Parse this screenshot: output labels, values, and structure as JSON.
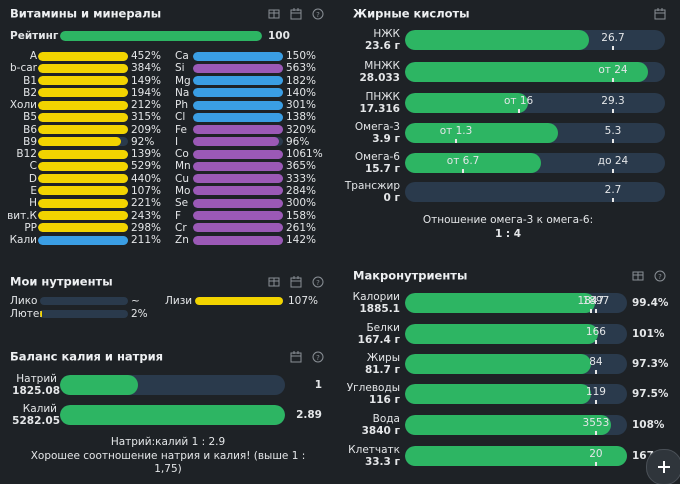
{
  "vitamins": {
    "title": "Витамины и минералы",
    "rating": {
      "label": "Рейтинг",
      "value": 100
    },
    "left": [
      {
        "name": "A",
        "value": 452,
        "value_label": "452%",
        "color": "#f2d400"
      },
      {
        "name": "b-car",
        "value": 384,
        "value_label": "384%",
        "color": "#f2d400"
      },
      {
        "name": "B1",
        "value": 149,
        "value_label": "149%",
        "color": "#f2d400"
      },
      {
        "name": "B2",
        "value": 194,
        "value_label": "194%",
        "color": "#f2d400"
      },
      {
        "name": "Холи",
        "value": 212,
        "value_label": "212%",
        "color": "#f2d400"
      },
      {
        "name": "B5",
        "value": 315,
        "value_label": "315%",
        "color": "#f2d400"
      },
      {
        "name": "B6",
        "value": 209,
        "value_label": "209%",
        "color": "#f2d400"
      },
      {
        "name": "B9",
        "value": 92,
        "value_label": "92%",
        "color": "#f2d400"
      },
      {
        "name": "B12",
        "value": 139,
        "value_label": "139%",
        "color": "#f2d400"
      },
      {
        "name": "C",
        "value": 529,
        "value_label": "529%",
        "color": "#f2d400"
      },
      {
        "name": "D",
        "value": 440,
        "value_label": "440%",
        "color": "#f2d400"
      },
      {
        "name": "E",
        "value": 107,
        "value_label": "107%",
        "color": "#f2d400"
      },
      {
        "name": "H",
        "value": 221,
        "value_label": "221%",
        "color": "#f2d400"
      },
      {
        "name": "вит.К",
        "value": 243,
        "value_label": "243%",
        "color": "#f2d400"
      },
      {
        "name": "PP",
        "value": 298,
        "value_label": "298%",
        "color": "#f2d400"
      },
      {
        "name": "Кали",
        "value": 211,
        "value_label": "211%",
        "color": "#3a9ee4"
      }
    ],
    "right": [
      {
        "name": "Ca",
        "value": 150,
        "value_label": "150%",
        "color": "#3a9ee4"
      },
      {
        "name": "Si",
        "value": 563,
        "value_label": "563%",
        "color": "#9b59b6"
      },
      {
        "name": "Mg",
        "value": 182,
        "value_label": "182%",
        "color": "#3a9ee4"
      },
      {
        "name": "Na",
        "value": 140,
        "value_label": "140%",
        "color": "#3a9ee4"
      },
      {
        "name": "Ph",
        "value": 301,
        "value_label": "301%",
        "color": "#3a9ee4"
      },
      {
        "name": "Cl",
        "value": 138,
        "value_label": "138%",
        "color": "#3a9ee4"
      },
      {
        "name": "Fe",
        "value": 320,
        "value_label": "320%",
        "color": "#9b59b6"
      },
      {
        "name": "I",
        "value": 96,
        "value_label": "96%",
        "color": "#9b59b6"
      },
      {
        "name": "Co",
        "value": 1061,
        "value_label": "1061%",
        "color": "#9b59b6"
      },
      {
        "name": "Mn",
        "value": 365,
        "value_label": "365%",
        "color": "#9b59b6"
      },
      {
        "name": "Cu",
        "value": 333,
        "value_label": "333%",
        "color": "#9b59b6"
      },
      {
        "name": "Mo",
        "value": 284,
        "value_label": "284%",
        "color": "#9b59b6"
      },
      {
        "name": "Se",
        "value": 300,
        "value_label": "300%",
        "color": "#9b59b6"
      },
      {
        "name": "F",
        "value": 158,
        "value_label": "158%",
        "color": "#9b59b6"
      },
      {
        "name": "Cr",
        "value": 261,
        "value_label": "261%",
        "color": "#9b59b6"
      },
      {
        "name": "Zn",
        "value": 142,
        "value_label": "142%",
        "color": "#9b59b6"
      }
    ]
  },
  "fatty_acids": {
    "title": "Жирные кислоты",
    "rows": [
      {
        "name": "НЖК",
        "amount": {
          "value": 23.6,
          "label": "23.6 г"
        },
        "targets": [
          26.7
        ]
      },
      {
        "name": "МНЖК",
        "amount": 28.033,
        "targets": [
          {
            "value": 24,
            "label": "от 24"
          }
        ]
      },
      {
        "name": "ПНЖК",
        "amount": 17.316,
        "targets": [
          {
            "value": 16,
            "label": "от 16"
          },
          29.3
        ]
      },
      {
        "name": "Омега-3",
        "amount": {
          "value": 3.9,
          "label": "3.9 г"
        },
        "targets": [
          {
            "value": 1.3,
            "label": "от 1.3"
          },
          5.3
        ]
      },
      {
        "name": "Омега-6",
        "amount": {
          "value": 15.7,
          "label": "15.7 г"
        },
        "targets": [
          {
            "value": 6.7,
            "label": "от 6.7"
          },
          {
            "value": 24,
            "label": "до 24"
          }
        ]
      },
      {
        "name": "Трансжир",
        "amount": {
          "value": 0,
          "label": "0 г"
        },
        "targets": [
          2.7
        ]
      }
    ],
    "ratio_caption": "Отношение омега-3 к омега-6:",
    "ratio": "1 : 4"
  },
  "my_nutrients": {
    "title": "Мои нутриенты",
    "items": [
      {
        "name": "Лико",
        "value": null,
        "value_label": "~",
        "color": "#f2d400"
      },
      {
        "name": "Лютеи",
        "value": 2,
        "value_label": "2%",
        "color": "#f2d400"
      },
      {
        "name": "Лизи",
        "value": 107,
        "value_label": "107%",
        "color": "#f2d400"
      }
    ]
  },
  "balance": {
    "title": "Баланс калия и натрия",
    "rows": [
      {
        "name": "Натрий",
        "amount": 1825.08,
        "ratio": 1
      },
      {
        "name": "Калий",
        "amount": 5282.05,
        "ratio": 2.89
      }
    ],
    "ratio_text": "Натрий:калий 1 : 2.9",
    "comment": "Хорошее соотношение натрия и калия! (выше 1 : 1,75)"
  },
  "macros": {
    "title": "Макронутриенты",
    "rows": [
      {
        "name": "Калории",
        "amount": 1885.1,
        "targets": [
          1847,
          1897
        ],
        "percent": {
          "value": 99.4,
          "label": "99.4%"
        }
      },
      {
        "name": "Белки",
        "amount": {
          "value": 167.4,
          "label": "167.4 г"
        },
        "targets": [
          166
        ],
        "percent": {
          "value": 101,
          "label": "101%"
        }
      },
      {
        "name": "Жиры",
        "amount": {
          "value": 81.7,
          "label": "81.7 г"
        },
        "targets": [
          84
        ],
        "percent": {
          "value": 97.3,
          "label": "97.3%"
        }
      },
      {
        "name": "Углеводы",
        "amount": {
          "value": 116,
          "label": "116 г"
        },
        "targets": [
          119
        ],
        "percent": {
          "value": 97.5,
          "label": "97.5%"
        }
      },
      {
        "name": "Вода",
        "amount": {
          "value": 3840,
          "label": "3840 г"
        },
        "targets": [
          3553
        ],
        "percent": {
          "value": 108,
          "label": "108%"
        }
      },
      {
        "name": "Клетчатк",
        "amount": {
          "value": 33.3,
          "label": "33.3 г"
        },
        "targets": [
          20
        ],
        "percent": 167
      }
    ]
  }
}
